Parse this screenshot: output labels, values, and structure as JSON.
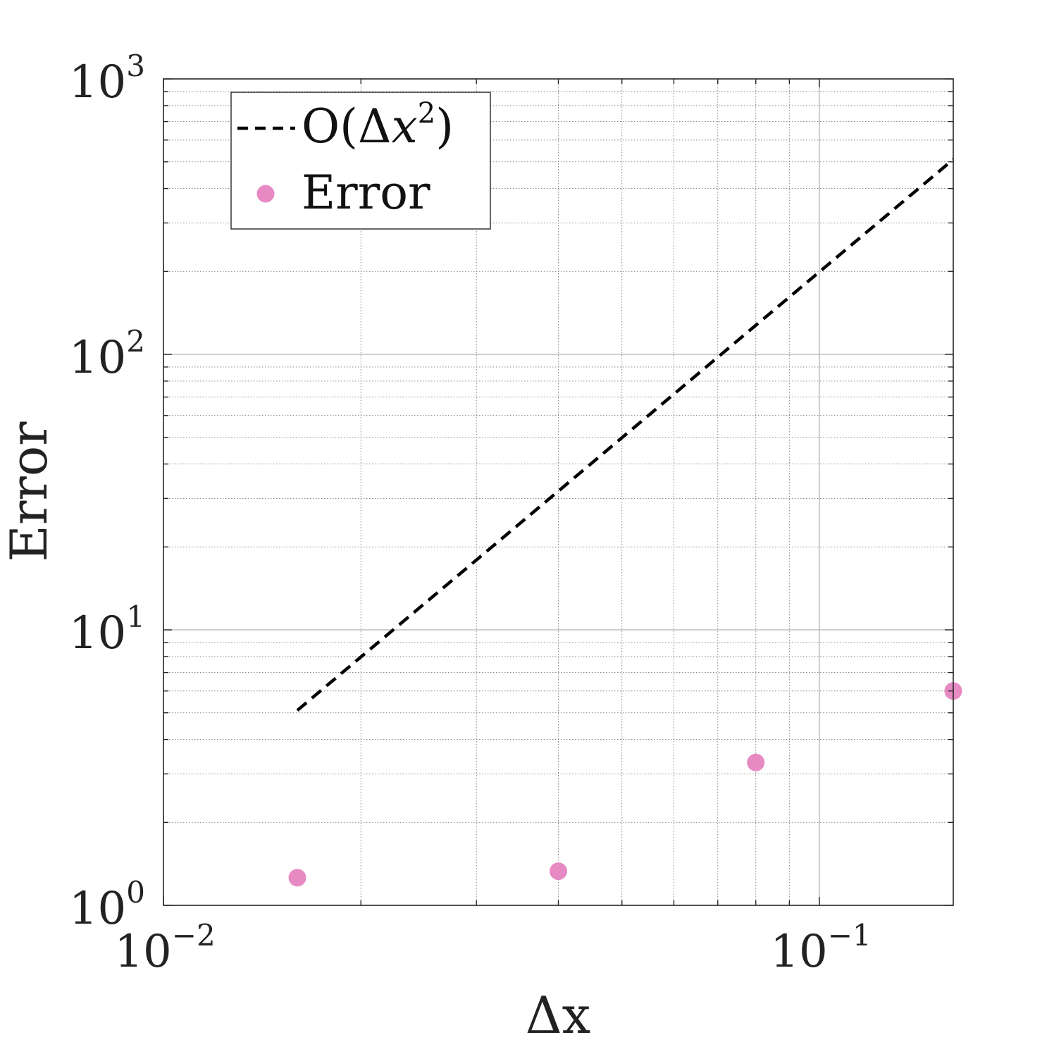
{
  "chart_data": {
    "type": "scatter",
    "title": "",
    "xlabel": "Δx",
    "ylabel": "Error",
    "x_scale": "log",
    "y_scale": "log",
    "xlim": [
      0.01,
      0.16
    ],
    "ylim": [
      1,
      1000
    ],
    "grid": true,
    "legend_position": "top-left",
    "x_ticks": [
      {
        "base": "10",
        "exp": "−2",
        "value": 0.01
      },
      {
        "base": "10",
        "exp": "−1",
        "value": 0.1
      }
    ],
    "y_ticks": [
      {
        "base": "10",
        "exp": "0",
        "value": 1
      },
      {
        "base": "10",
        "exp": "1",
        "value": 10
      },
      {
        "base": "10",
        "exp": "2",
        "value": 100
      },
      {
        "base": "10",
        "exp": "3",
        "value": 1000
      }
    ],
    "series": [
      {
        "name": "O(Δx²)",
        "legend_parts": {
          "pre": "O(Δ",
          "var": "x",
          "exp": "2",
          "post": ")"
        },
        "style": "dashed-line",
        "color": "#000000",
        "points": [
          [
            0.016,
            5.1
          ],
          [
            0.16,
            510
          ]
        ]
      },
      {
        "name": "Error",
        "style": "markers",
        "color": "#e78ac3",
        "points": [
          [
            0.016,
            1.26
          ],
          [
            0.04,
            1.33
          ],
          [
            0.08,
            3.3
          ],
          [
            0.16,
            6.0
          ]
        ]
      }
    ]
  }
}
